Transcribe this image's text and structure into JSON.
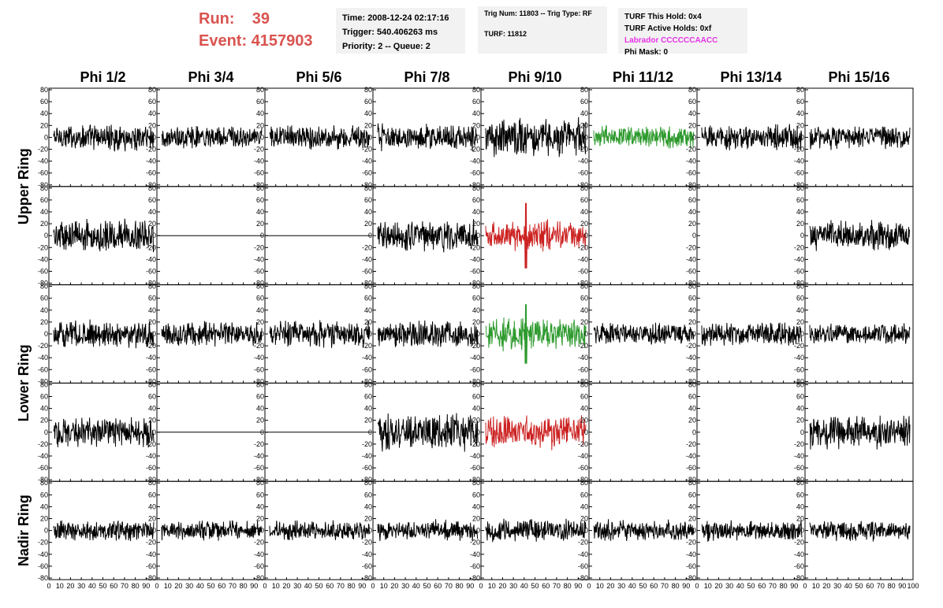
{
  "header": {
    "run_label": "Run:",
    "run_value": "39",
    "event_label": "Event:",
    "event_value": "4157903"
  },
  "info": {
    "time": "Time: 2008-12-24 02:17:16",
    "trigger": "Trigger: 540.406263 ms",
    "priority": "Priority: 2 -- Queue: 2",
    "trig_num": "Trig Num: 11803 -- Trig Type: RF",
    "turf": "TURF: 11812",
    "hold": "TURF This Hold: 0x4",
    "active_holds": "TURF Active Holds: 0xf",
    "labrador": "Labrador CCCCCCAACC",
    "phi_mask": "Phi Mask: 0"
  },
  "colors": {
    "normal": "#000000",
    "green": "#2e9a2e",
    "red": "#cc2222",
    "header_red": "#d9534f",
    "magenta": "#e633e6"
  },
  "chart_data": {
    "type": "line",
    "columns": [
      "Phi 1/2",
      "Phi 3/4",
      "Phi 5/6",
      "Phi 7/8",
      "Phi 9/10",
      "Phi 11/12",
      "Phi 13/14",
      "Phi 15/16"
    ],
    "ring_labels": [
      "Upper Ring",
      "Lower Ring",
      "Nadir Ring"
    ],
    "ylim": [
      -80,
      80
    ],
    "yticks": [
      -80,
      -60,
      -40,
      -20,
      0,
      20,
      40,
      60,
      80
    ],
    "xlim": [
      0,
      100
    ],
    "xticks": [
      0,
      10,
      20,
      30,
      40,
      50,
      60,
      70,
      80,
      90,
      100
    ],
    "grid": false,
    "rows": [
      [
        {
          "style": "black",
          "amp": 18,
          "spike": 0
        },
        {
          "style": "black",
          "amp": 15,
          "spike": 0
        },
        {
          "style": "black",
          "amp": 17,
          "spike": 0
        },
        {
          "style": "black",
          "amp": 18,
          "spike": 0
        },
        {
          "style": "black",
          "amp": 25,
          "spike": 0
        },
        {
          "style": "green",
          "amp": 15,
          "spike": 0
        },
        {
          "style": "black",
          "amp": 17,
          "spike": 0
        },
        {
          "style": "black",
          "amp": 16,
          "spike": 0
        }
      ],
      [
        {
          "style": "black",
          "amp": 22,
          "spike": 0
        },
        {
          "style": "flat",
          "amp": 0,
          "spike": 0
        },
        {
          "style": "flat",
          "amp": 0,
          "spike": 0
        },
        {
          "style": "black",
          "amp": 22,
          "spike": 0
        },
        {
          "style": "red",
          "amp": 20,
          "spike": 55
        },
        {
          "style": "none",
          "amp": 0,
          "spike": 0
        },
        {
          "style": "none",
          "amp": 0,
          "spike": 0
        },
        {
          "style": "black",
          "amp": 20,
          "spike": 0
        }
      ],
      [
        {
          "style": "black",
          "amp": 18,
          "spike": 0
        },
        {
          "style": "black",
          "amp": 17,
          "spike": 0
        },
        {
          "style": "black",
          "amp": 18,
          "spike": 0
        },
        {
          "style": "black",
          "amp": 18,
          "spike": 0
        },
        {
          "style": "green",
          "amp": 22,
          "spike": 50
        },
        {
          "style": "black",
          "amp": 15,
          "spike": 0
        },
        {
          "style": "black",
          "amp": 16,
          "spike": 0
        },
        {
          "style": "black",
          "amp": 14,
          "spike": 0
        }
      ],
      [
        {
          "style": "black",
          "amp": 20,
          "spike": 0
        },
        {
          "style": "flat",
          "amp": 0,
          "spike": 0
        },
        {
          "style": "flat",
          "amp": 0,
          "spike": 0
        },
        {
          "style": "black",
          "amp": 24,
          "spike": 0
        },
        {
          "style": "red",
          "amp": 22,
          "spike": 0
        },
        {
          "style": "none",
          "amp": 0,
          "spike": 0
        },
        {
          "style": "none",
          "amp": 0,
          "spike": 0
        },
        {
          "style": "black",
          "amp": 22,
          "spike": 0
        }
      ],
      [
        {
          "style": "black",
          "amp": 14,
          "spike": 0
        },
        {
          "style": "black",
          "amp": 13,
          "spike": 0
        },
        {
          "style": "black",
          "amp": 13,
          "spike": 0
        },
        {
          "style": "black",
          "amp": 14,
          "spike": 0
        },
        {
          "style": "black",
          "amp": 15,
          "spike": 0
        },
        {
          "style": "black",
          "amp": 14,
          "spike": 0
        },
        {
          "style": "black",
          "amp": 14,
          "spike": 0
        },
        {
          "style": "black",
          "amp": 14,
          "spike": 0
        }
      ]
    ]
  }
}
